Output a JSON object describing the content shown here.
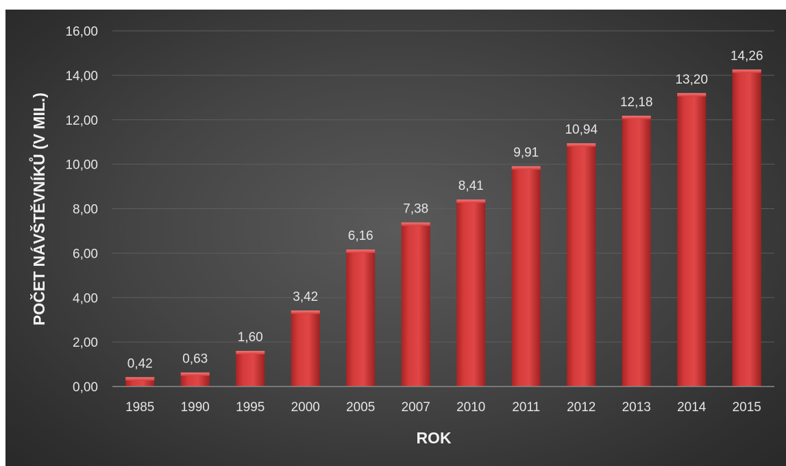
{
  "chart_data": {
    "type": "bar",
    "categories": [
      "1985",
      "1990",
      "1995",
      "2000",
      "2005",
      "2007",
      "2010",
      "2011",
      "2012",
      "2013",
      "2014",
      "2015"
    ],
    "values": [
      0.42,
      0.63,
      1.6,
      3.42,
      6.16,
      7.38,
      8.41,
      9.91,
      10.94,
      12.18,
      13.2,
      14.26
    ],
    "value_labels": [
      "0,42",
      "0,63",
      "1,60",
      "3,42",
      "6,16",
      "7,38",
      "8,41",
      "9,91",
      "10,94",
      "12,18",
      "13,20",
      "14,26"
    ],
    "yticks": [
      0,
      2,
      4,
      6,
      8,
      10,
      12,
      14,
      16
    ],
    "ytick_labels": [
      "0,00",
      "2,00",
      "4,00",
      "6,00",
      "8,00",
      "10,00",
      "12,00",
      "14,00",
      "16,00"
    ],
    "ylim": [
      0,
      16
    ],
    "xlabel": "ROK",
    "ylabel": "POČET NÁVŠTĚVNÍKŮ (V MIL.)",
    "grid": true,
    "bar_color": "#d63b3b",
    "background_color": "#444444"
  }
}
